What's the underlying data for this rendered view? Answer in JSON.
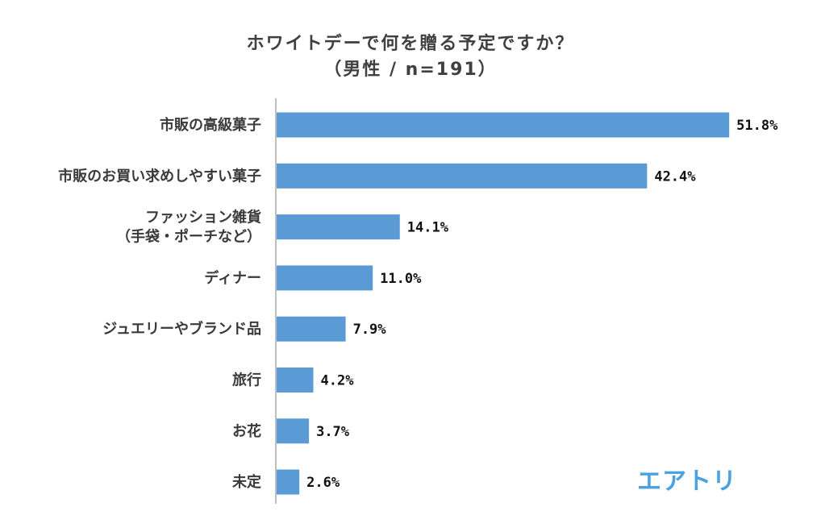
{
  "chart_data": {
    "type": "bar",
    "orientation": "horizontal",
    "title": "ホワイトデーで何を贈る予定ですか？",
    "subtitle": "（男性 / n=191）",
    "categories": [
      [
        "市販の高級菓子"
      ],
      [
        "市販のお買い求めしやすい菓子"
      ],
      [
        "ファッション雑貨",
        "（手袋・ポーチなど）"
      ],
      [
        "ディナー"
      ],
      [
        "ジュエリーやブランド品"
      ],
      [
        "旅行"
      ],
      [
        "お花"
      ],
      [
        "未定"
      ]
    ],
    "values": [
      51.8,
      42.4,
      14.1,
      11.0,
      7.9,
      4.2,
      3.7,
      2.6
    ],
    "value_labels": [
      "51.8%",
      "42.4%",
      "14.1%",
      "11.0%",
      "7.9%",
      "4.2%",
      "3.7%",
      "2.6%"
    ],
    "xlim": [
      0,
      60
    ],
    "unit": "%",
    "grid": false,
    "bar_color": "#5b9bd5",
    "axis_color": "#bfbfbf"
  },
  "brand": {
    "logo_text": "エアトリ",
    "logo_color": "#4aa3df"
  }
}
